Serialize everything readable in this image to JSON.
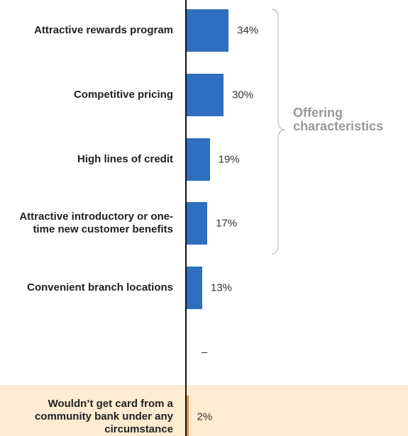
{
  "chart_data": {
    "type": "bar",
    "orientation": "horizontal",
    "categories": [
      "Attractive rewards program",
      "Competitive pricing",
      "High lines of credit",
      "Attractive introductory or one-time new customer benefits",
      "Convenient branch locations",
      null,
      "Wouldn’t get card from a community bank under any circumstance"
    ],
    "values": [
      34,
      30,
      19,
      17,
      13,
      null,
      2
    ],
    "value_labels": [
      "34%",
      "30%",
      "19%",
      "17%",
      "13%",
      "–",
      "2%"
    ],
    "colors": [
      "#2f6fbf",
      "#2f6fbf",
      "#2f6fbf",
      "#2f6fbf",
      "#2f6fbf",
      "#2f6fbf",
      "#ea8a3a"
    ],
    "xlim": [
      0,
      100
    ],
    "annotation": "Offering characteristics"
  }
}
